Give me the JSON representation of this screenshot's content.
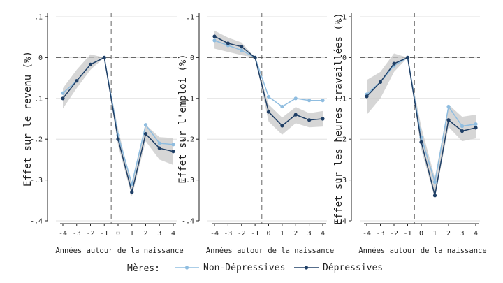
{
  "figure": {
    "legend": {
      "title": "Mères:",
      "entries": [
        "Non-Dépressives",
        "Dépressives"
      ]
    }
  },
  "colors": {
    "non_depressed": "#8fbde0",
    "depressed": "#1f3f66",
    "ci_band": "#c8c8c8",
    "grid": "#d9d9d9",
    "reference_line": "#555555"
  },
  "chart_data": [
    {
      "type": "line",
      "ylabel": "Effet sur le revenu (%)",
      "xlabel": "Années autour de la naissance",
      "x": [
        -4,
        -3,
        -2,
        -1,
        0,
        1,
        2,
        3,
        4
      ],
      "xticks": [
        "-4",
        "-3",
        "-2",
        "-1",
        "0",
        "1",
        "2",
        "3",
        "4"
      ],
      "yticks": [
        0.1,
        0,
        -0.1,
        -0.2,
        -0.3,
        -0.4
      ],
      "ytick_labels": [
        ".1",
        "0",
        "-.1",
        "-.2",
        "-.3",
        "-.4"
      ],
      "ylim": [
        -0.4,
        0.1
      ],
      "event_line": -0.5,
      "grid": true,
      "series": [
        {
          "name": "Non-Dépressives",
          "values": [
            -0.087,
            -0.057,
            -0.017,
            0,
            -0.19,
            -0.31,
            -0.165,
            -0.21,
            -0.213
          ]
        },
        {
          "name": "Dépressives",
          "values": [
            -0.1,
            -0.057,
            -0.017,
            0,
            -0.2,
            -0.33,
            -0.187,
            -0.222,
            -0.23
          ]
        }
      ],
      "ci_band": {
        "lower": [
          -0.125,
          -0.075,
          -0.03,
          0,
          -0.215,
          -0.34,
          -0.205,
          -0.25,
          -0.263
        ],
        "upper": [
          -0.075,
          -0.03,
          0.008,
          0,
          -0.175,
          -0.315,
          -0.165,
          -0.195,
          -0.197
        ]
      }
    },
    {
      "type": "line",
      "ylabel": "Effet sur l'emploi (%)",
      "xlabel": "Années autour de la naissance",
      "x": [
        -4,
        -3,
        -2,
        -1,
        0,
        1,
        2,
        3,
        4
      ],
      "xticks": [
        "-4",
        "-3",
        "-2",
        "-1",
        "0",
        "1",
        "2",
        "3",
        "4"
      ],
      "yticks": [
        0.1,
        0,
        -0.1,
        -0.2,
        -0.3,
        -0.4
      ],
      "ytick_labels": [
        ".1",
        "0",
        "-.1",
        "-.2",
        "-.3",
        "-.4"
      ],
      "ylim": [
        -0.4,
        0.1
      ],
      "event_line": -0.5,
      "grid": true,
      "series": [
        {
          "name": "Non-Dépressives",
          "values": [
            0.042,
            0.03,
            0.018,
            0,
            -0.096,
            -0.12,
            -0.1,
            -0.105,
            -0.105
          ]
        },
        {
          "name": "Dépressives",
          "values": [
            0.052,
            0.035,
            0.027,
            0,
            -0.133,
            -0.167,
            -0.14,
            -0.153,
            -0.15
          ]
        }
      ],
      "ci_band": {
        "lower": [
          0.022,
          0.014,
          0.006,
          0,
          -0.157,
          -0.189,
          -0.161,
          -0.171,
          -0.169
        ],
        "upper": [
          0.066,
          0.049,
          0.037,
          0,
          -0.115,
          -0.147,
          -0.121,
          -0.136,
          -0.131
        ]
      }
    },
    {
      "type": "line",
      "ylabel": "Effet sur les heures travaillées (%)",
      "xlabel": "Années autour de la naissance",
      "x": [
        -4,
        -3,
        -2,
        -1,
        0,
        1,
        2,
        3,
        4
      ],
      "xticks": [
        "-4",
        "-3",
        "-2",
        "-1",
        "0",
        "1",
        "2",
        "3",
        "4"
      ],
      "yticks": [
        0.1,
        0,
        -0.1,
        -0.2,
        -0.3,
        -0.4
      ],
      "ytick_labels": [
        ".1",
        "0",
        "-.1",
        "-.2",
        "-.3",
        "-.4"
      ],
      "ylim": [
        -0.4,
        0.1
      ],
      "event_line": -0.5,
      "grid": true,
      "series": [
        {
          "name": "Non-Dépressives",
          "values": [
            -0.09,
            -0.06,
            -0.02,
            0,
            -0.195,
            -0.305,
            -0.12,
            -0.168,
            -0.163
          ]
        },
        {
          "name": "Dépressives",
          "values": [
            -0.095,
            -0.06,
            -0.015,
            0,
            -0.207,
            -0.338,
            -0.153,
            -0.18,
            -0.172
          ]
        }
      ],
      "ci_band": {
        "lower": [
          -0.14,
          -0.1,
          -0.035,
          0,
          -0.225,
          -0.345,
          -0.17,
          -0.205,
          -0.198
        ],
        "upper": [
          -0.055,
          -0.035,
          0.01,
          0,
          -0.17,
          -0.295,
          -0.115,
          -0.145,
          -0.14
        ]
      }
    }
  ]
}
